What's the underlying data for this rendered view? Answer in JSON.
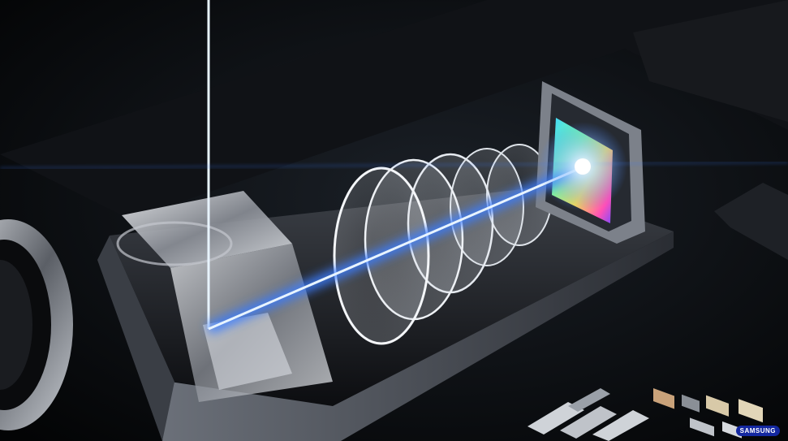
{
  "image": {
    "watermark": "SAMSUNG",
    "colors": {
      "background": "#050608",
      "beam": "#3b7dff",
      "beam_core": "#e8f4ff",
      "metal": "#9aa0a8",
      "sensor_accent": "#ff4fb8"
    }
  }
}
